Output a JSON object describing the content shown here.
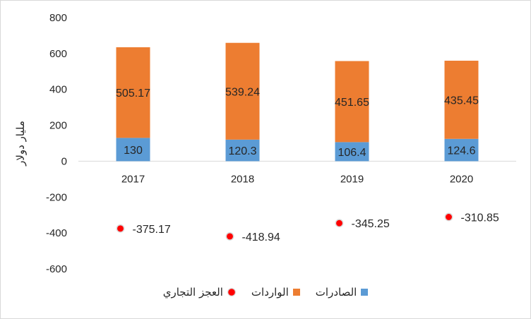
{
  "chart_data": {
    "type": "bar",
    "categories": [
      "2017",
      "2018",
      "2019",
      "2020"
    ],
    "series": [
      {
        "name": "الصادرات",
        "kind": "stacked-bar",
        "color": "#5b9bd5",
        "values": [
          130,
          120.3,
          106.4,
          124.6
        ]
      },
      {
        "name": "الواردات",
        "kind": "stacked-bar",
        "color": "#ed7d31",
        "values": [
          505.17,
          539.24,
          451.65,
          435.45
        ]
      },
      {
        "name": "العجز التجاري",
        "kind": "scatter",
        "color": "#ff0000",
        "values": [
          -375.17,
          -418.94,
          -345.25,
          -310.85
        ]
      }
    ],
    "data_labels": {
      "exports": [
        "130",
        "120.3",
        "106.4",
        "124.6"
      ],
      "imports": [
        "505.17",
        "539.24",
        "451.65",
        "435.45"
      ],
      "deficit": [
        "-375.17",
        "-418.94",
        "-345.25",
        "-310.85"
      ]
    },
    "yticks": [
      "800",
      "600",
      "400",
      "200",
      "0",
      "-200",
      "-400",
      "-600"
    ],
    "ylim": [
      -600,
      800
    ],
    "ylabel": "مليار دولار",
    "xlabel": "",
    "title": "",
    "grid": false,
    "legend_position": "bottom"
  }
}
